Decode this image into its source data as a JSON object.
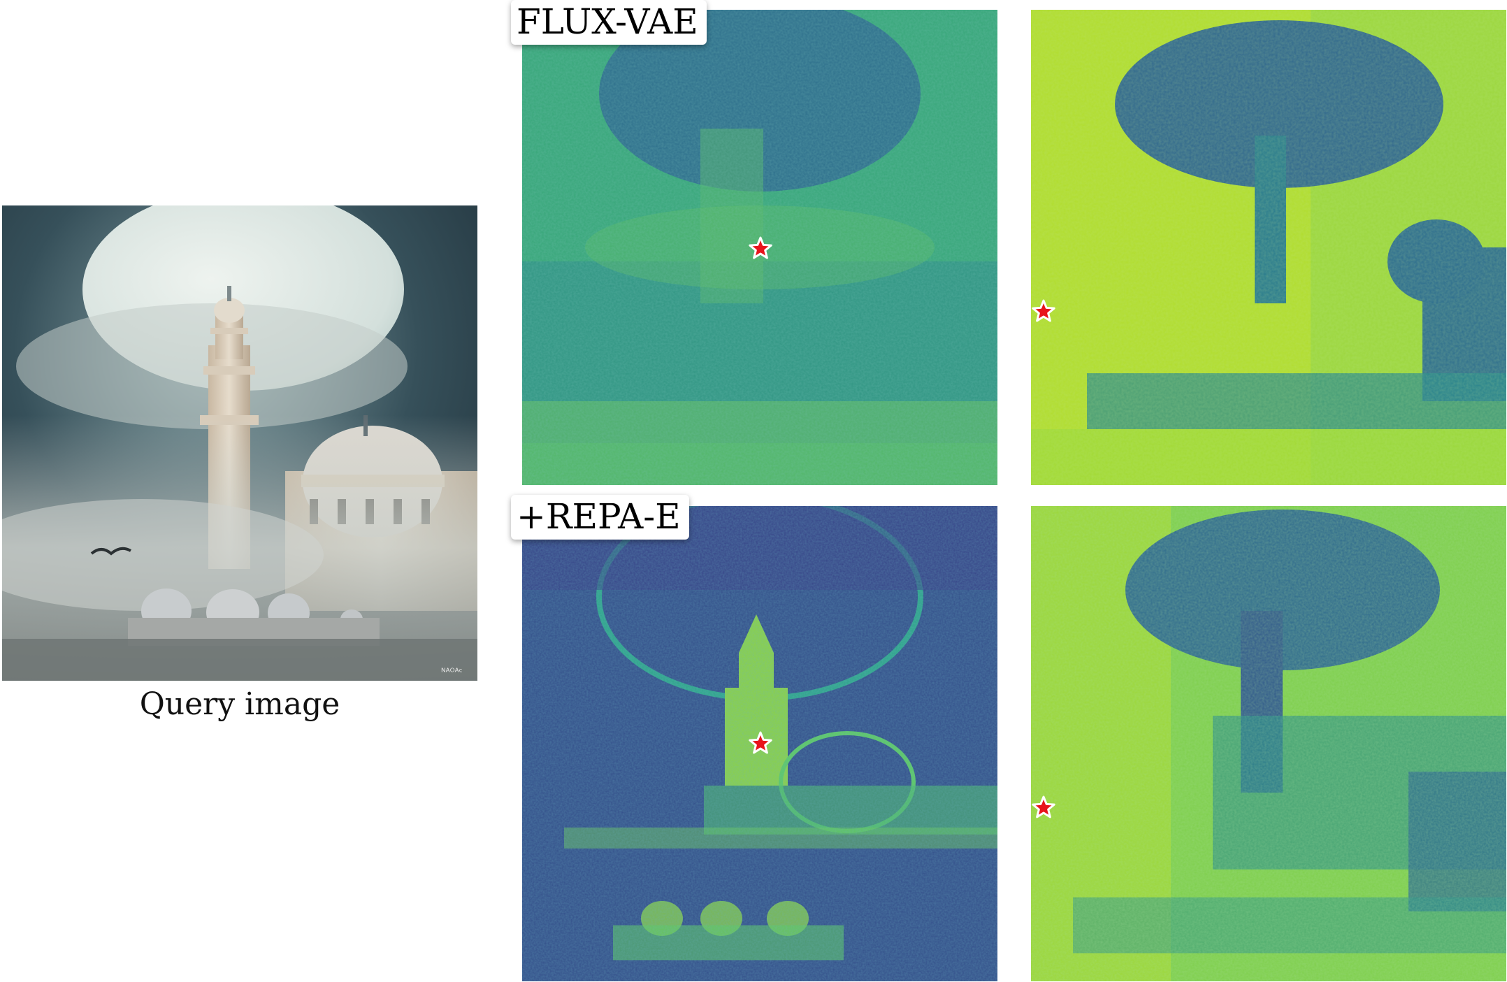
{
  "query": {
    "caption": "Query image",
    "watermark": "ᴺᴬᴼᴬᶜ"
  },
  "rows": [
    {
      "label": "FLUX-VAE"
    },
    {
      "label": "+REPA-E"
    }
  ],
  "marker": {
    "color": "#e8141c",
    "outline": "#ffffff",
    "shape": "star"
  },
  "colormap": [
    "#440154",
    "#3b528b",
    "#21918c",
    "#5ec962",
    "#fde725"
  ]
}
